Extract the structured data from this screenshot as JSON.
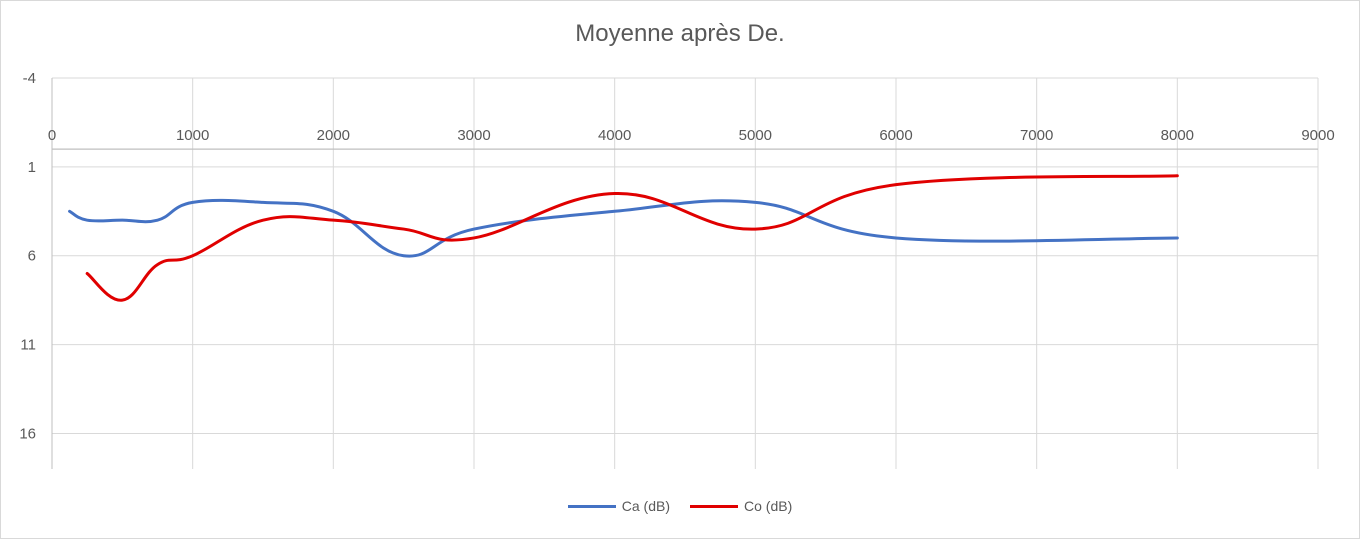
{
  "chart_data": {
    "type": "line",
    "title": "Moyenne après De.",
    "xlabel": "",
    "ylabel": "",
    "xlim": [
      0,
      9000
    ],
    "ylim": [
      -4,
      18
    ],
    "y_inverted": true,
    "x_axis_position": "top",
    "x_ticks": [
      0,
      1000,
      2000,
      3000,
      4000,
      5000,
      6000,
      7000,
      8000,
      9000
    ],
    "y_ticks": [
      -4,
      1,
      6,
      11,
      16
    ],
    "grid": true,
    "legend_position": "bottom",
    "smooth": true,
    "series": [
      {
        "name": "Ca (dB)",
        "color": "#4472c4",
        "x": [
          125,
          250,
          500,
          750,
          1000,
          1500,
          2000,
          2500,
          3000,
          4000,
          5000,
          6000,
          8000
        ],
        "y": [
          3.5,
          4,
          4,
          4,
          3,
          3,
          3.5,
          6,
          4.5,
          3.5,
          3,
          5,
          5
        ]
      },
      {
        "name": "Co (dB)",
        "color": "#e00000",
        "x": [
          250,
          500,
          750,
          1000,
          1500,
          2000,
          2500,
          3000,
          4000,
          5000,
          6000,
          8000
        ],
        "y": [
          7,
          8.5,
          6.5,
          6,
          4,
          4,
          4.5,
          5,
          2.5,
          4.5,
          2,
          1.5
        ]
      }
    ]
  }
}
